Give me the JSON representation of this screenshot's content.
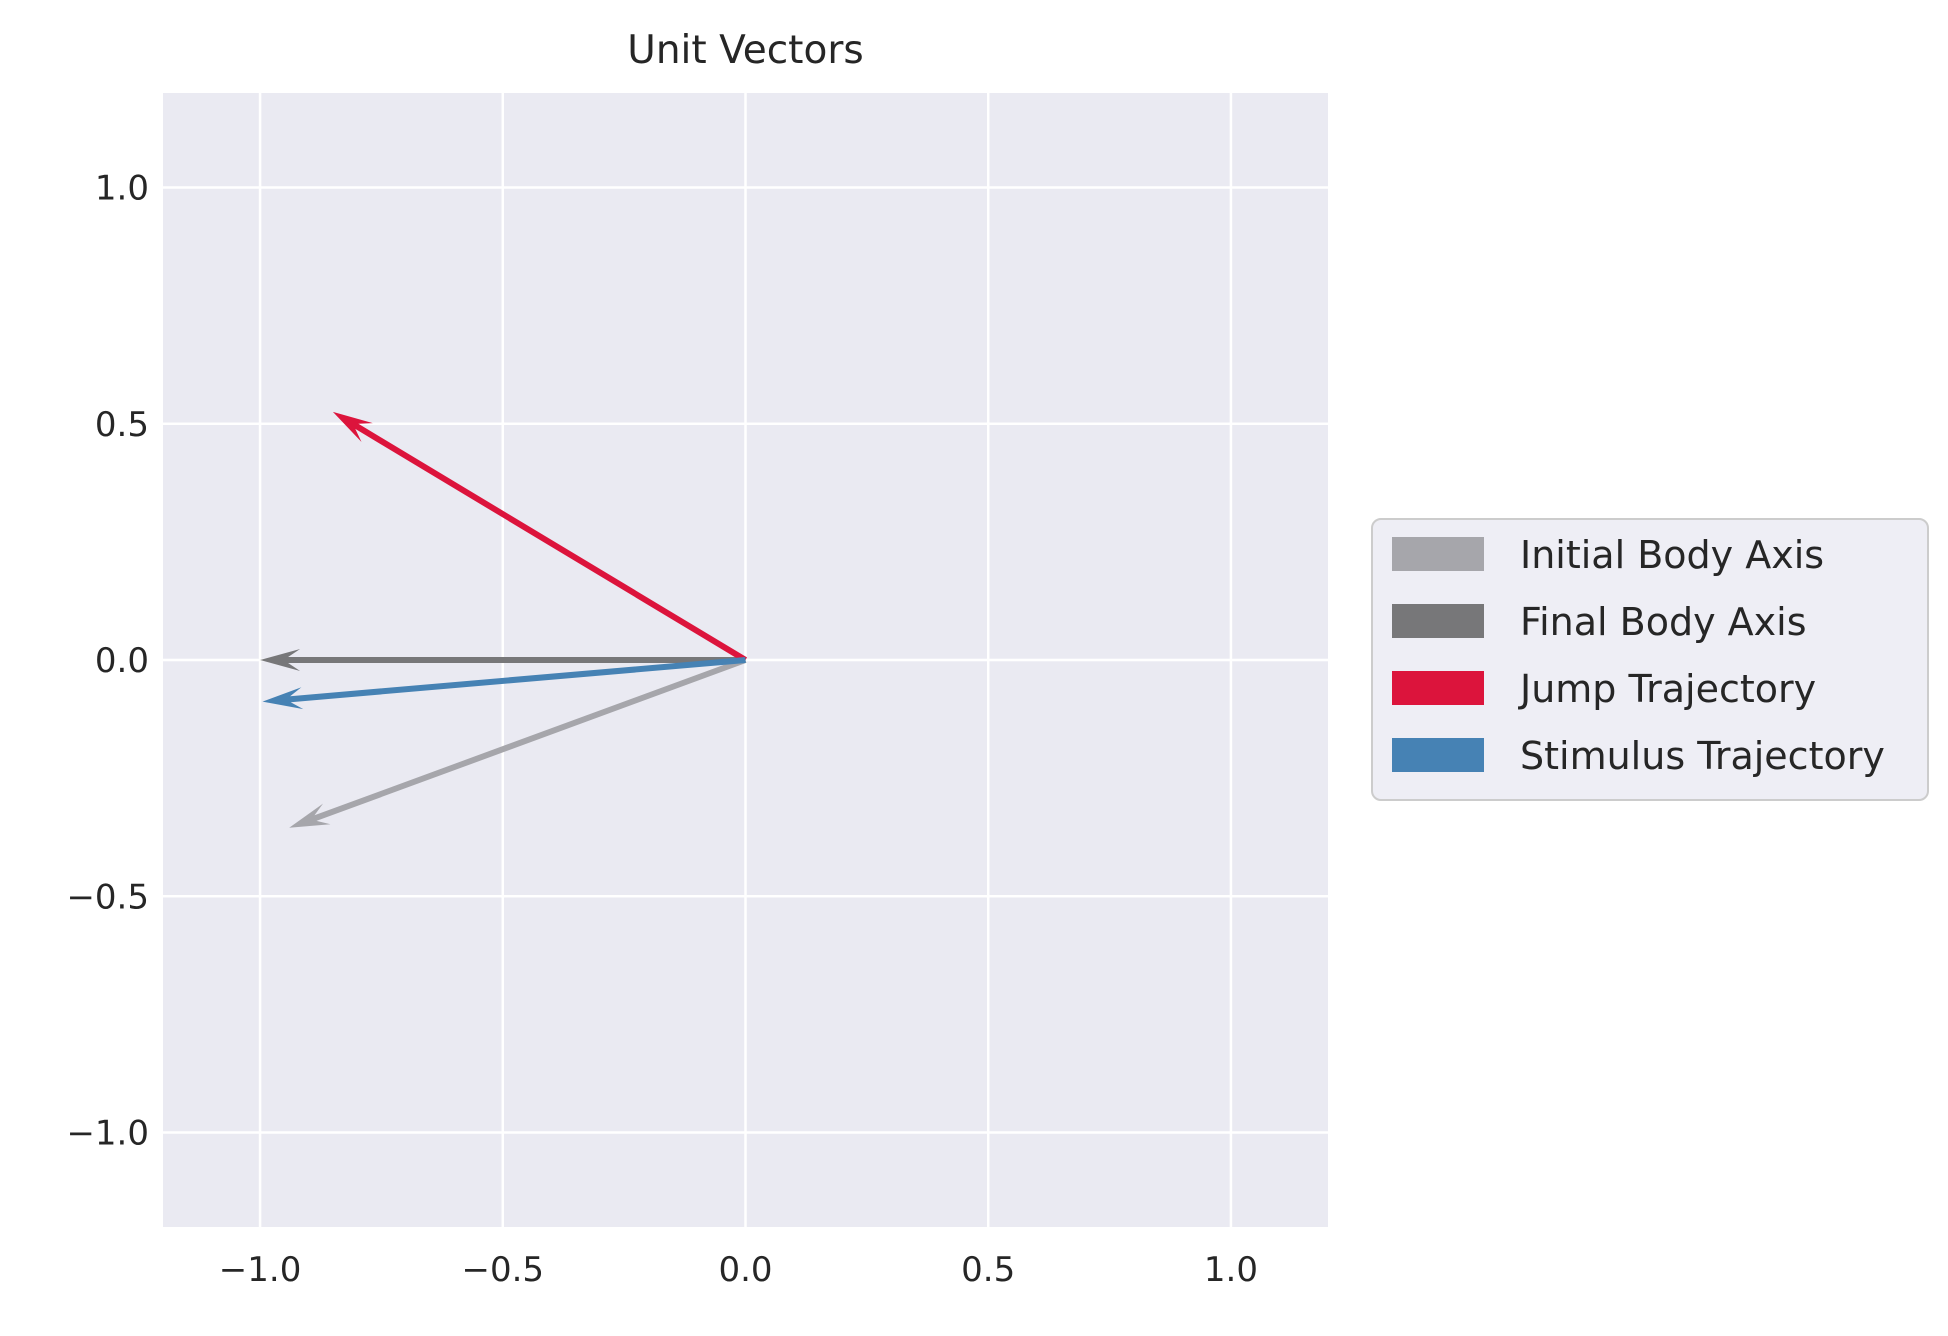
{
  "chart_data": {
    "type": "quiver",
    "title": "Unit Vectors",
    "xlabel": "",
    "ylabel": "",
    "xlim": [
      -1.2,
      1.2
    ],
    "ylim": [
      -1.2,
      1.2
    ],
    "xticks": [
      -1.0,
      -0.5,
      0.0,
      0.5,
      1.0
    ],
    "yticks": [
      -1.0,
      -0.5,
      0.0,
      0.5,
      1.0
    ],
    "xtick_labels": [
      "−1.0",
      "−0.5",
      "0.0",
      "0.5",
      "1.0"
    ],
    "ytick_labels": [
      "−1.0",
      "−0.5",
      "0.0",
      "0.5",
      "1.0"
    ],
    "grid": true,
    "legend_position": "center-right-outside",
    "series": [
      {
        "name": "Initial Body Axis",
        "color": "#a6a6ab",
        "origin": [
          0,
          0
        ],
        "vector": [
          -0.94,
          -0.355
        ]
      },
      {
        "name": "Final Body Axis",
        "color": "#777779",
        "origin": [
          0,
          0
        ],
        "vector": [
          -1.0,
          0.0
        ]
      },
      {
        "name": "Jump Trajectory",
        "color": "#dc143c",
        "origin": [
          0,
          0
        ],
        "vector": [
          -0.85,
          0.525
        ]
      },
      {
        "name": "Stimulus Trajectory",
        "color": "#4682b4",
        "origin": [
          0,
          0
        ],
        "vector": [
          -0.995,
          -0.088
        ]
      }
    ]
  }
}
